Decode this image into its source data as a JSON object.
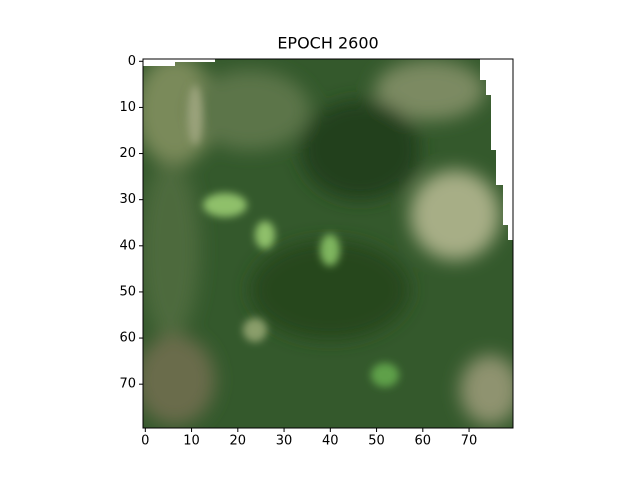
{
  "chart_data": {
    "type": "image",
    "title": "EPOCH 2600",
    "xlim": [
      -0.5,
      79.5
    ],
    "ylim": [
      79.5,
      -0.5
    ],
    "xticks": [
      0,
      10,
      20,
      30,
      40,
      50,
      60,
      70
    ],
    "yticks": [
      0,
      10,
      20,
      30,
      40,
      50,
      60,
      70
    ]
  }
}
